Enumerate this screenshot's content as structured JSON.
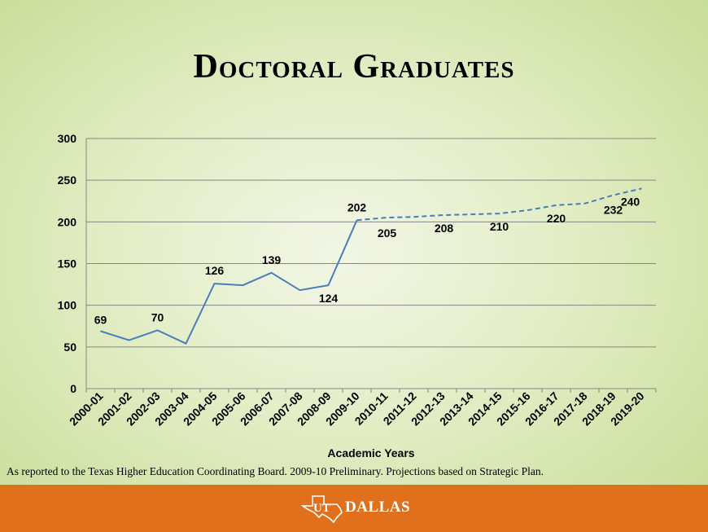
{
  "title": "Doctoral Graduates",
  "footnote": "As reported to the Texas Higher Education Coordinating Board.  2009-10 Preliminary.  Projections based on Strategic Plan.",
  "logo": {
    "text": "DALLAS",
    "mark": "UT"
  },
  "colors": {
    "line": "#4a7ebb",
    "footer": "#e1701c",
    "grid": "#868686"
  },
  "chart_data": {
    "type": "line",
    "title": "",
    "xlabel": "Academic Years",
    "ylabel": "",
    "ylim": [
      0,
      300
    ],
    "yticks": [
      0,
      50,
      100,
      150,
      200,
      250,
      300
    ],
    "grid": true,
    "categories": [
      "2000-01",
      "2001-02",
      "2002-03",
      "2003-04",
      "2004-05",
      "2005-06",
      "2006-07",
      "2007-08",
      "2008-09",
      "2009-10",
      "2010-11",
      "2011-12",
      "2012-13",
      "2013-14",
      "2014-15",
      "2015-16",
      "2016-17",
      "2017-18",
      "2018-19",
      "2019-20"
    ],
    "series": [
      {
        "style": "solid",
        "values": [
          69,
          58,
          70,
          54,
          126,
          124,
          139,
          118,
          124,
          202,
          null,
          null,
          null,
          null,
          null,
          null,
          null,
          null,
          null,
          null
        ]
      },
      {
        "style": "dashed",
        "values": [
          null,
          null,
          null,
          null,
          null,
          null,
          null,
          null,
          null,
          202,
          205,
          206,
          208,
          209,
          210,
          214,
          220,
          222,
          232,
          240
        ]
      }
    ],
    "data_labels": [
      {
        "index": 0,
        "text": "69"
      },
      {
        "index": 2,
        "text": "70"
      },
      {
        "index": 4,
        "text": "126"
      },
      {
        "index": 6,
        "text": "139"
      },
      {
        "index": 8,
        "text": "124"
      },
      {
        "index": 9,
        "text": "202"
      },
      {
        "index": 10,
        "text": "205"
      },
      {
        "index": 12,
        "text": "208"
      },
      {
        "index": 14,
        "text": "210"
      },
      {
        "index": 16,
        "text": "220"
      },
      {
        "index": 18,
        "text": "232"
      },
      {
        "index": 19,
        "text": "240"
      }
    ]
  }
}
